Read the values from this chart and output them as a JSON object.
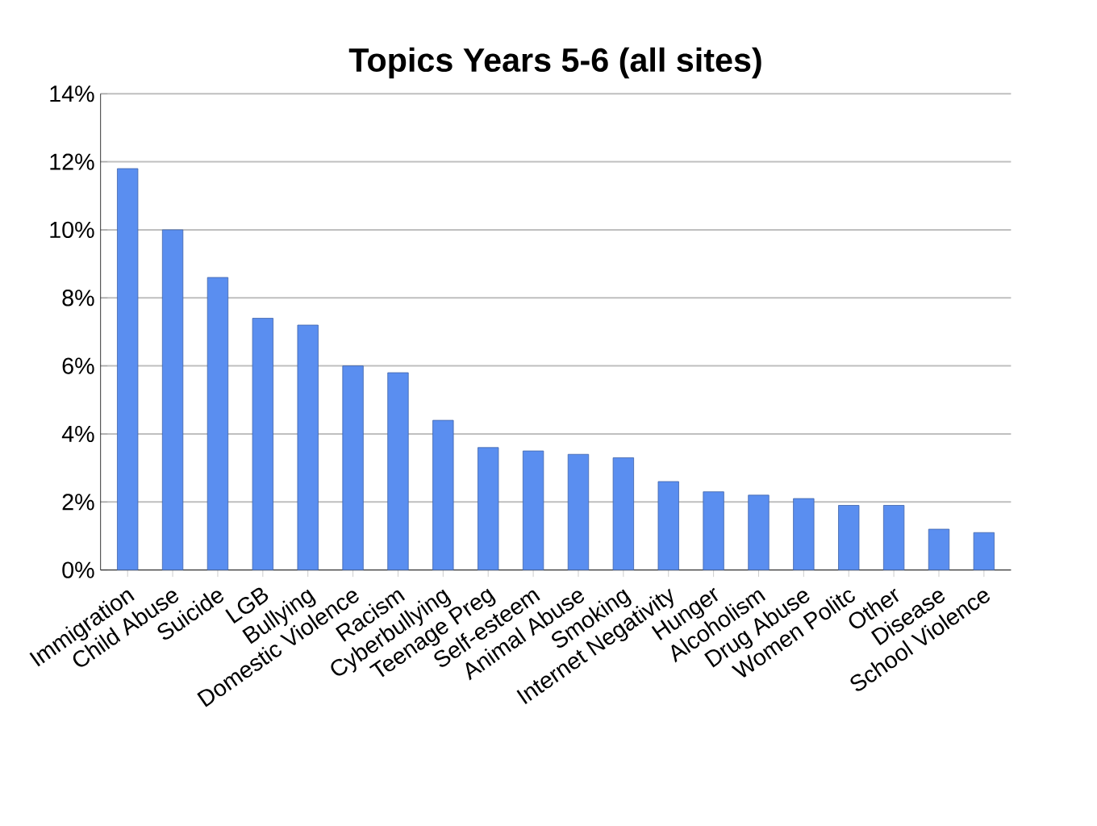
{
  "chart_data": {
    "type": "bar",
    "title": "Topics Years 5-6 (all sites)",
    "categories": [
      "Immigration",
      "Child Abuse",
      "Suicide",
      "LGB",
      "Bullying",
      "Domestic Violence",
      "Racism",
      "Cyberbullying",
      "Teenage Preg",
      "Self-esteem",
      "Animal Abuse",
      "Smoking",
      "Internet Negativity",
      "Hunger",
      "Alcoholism",
      "Drug Abuse",
      "Women Politc",
      "Other",
      "Disease",
      "School Violence"
    ],
    "values": [
      11.8,
      10.0,
      8.6,
      7.4,
      7.2,
      6.0,
      5.8,
      4.4,
      3.6,
      3.5,
      3.4,
      3.3,
      2.6,
      2.3,
      2.2,
      2.1,
      1.9,
      1.9,
      1.2,
      1.1
    ],
    "color": "#5a8ef0",
    "ylim": [
      0,
      14
    ],
    "yticks": [
      {
        "value": 0,
        "label": "0%"
      },
      {
        "value": 2,
        "label": "2%"
      },
      {
        "value": 4,
        "label": "4%"
      },
      {
        "value": 6,
        "label": "6%"
      },
      {
        "value": 8,
        "label": "8%"
      },
      {
        "value": 10,
        "label": "10%"
      },
      {
        "value": 12,
        "label": "12%"
      },
      {
        "value": 14,
        "label": "14%"
      }
    ],
    "grid": "y",
    "legend": false
  }
}
